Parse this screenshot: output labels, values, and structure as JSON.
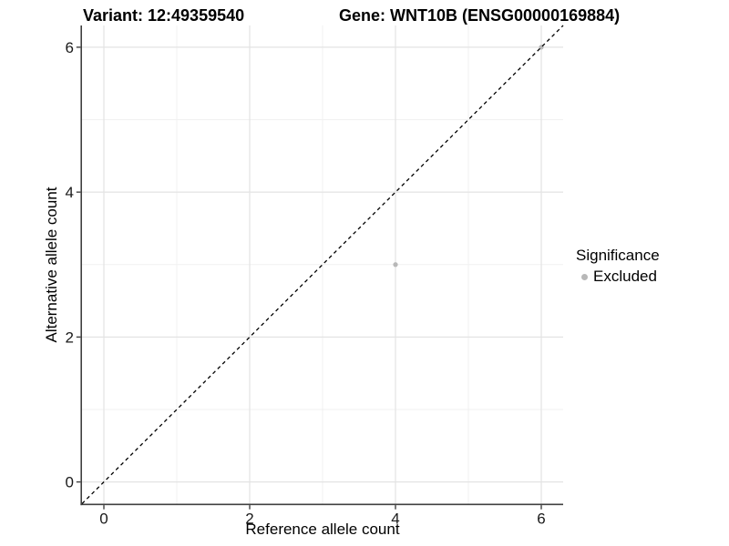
{
  "chart_data": {
    "type": "scatter",
    "title_left": "Variant: 12:49359540",
    "title_right": "Gene: WNT10B (ENSG00000169884)",
    "xlabel": "Reference allele count",
    "ylabel": "Alternative allele count",
    "xlim": [
      -0.3,
      6.3
    ],
    "ylim": [
      -0.3,
      6.3
    ],
    "xticks": [
      0,
      2,
      4,
      6
    ],
    "yticks": [
      0,
      2,
      4,
      6
    ],
    "xminor": [
      1,
      3,
      5
    ],
    "yminor": [
      1,
      3,
      5
    ],
    "grid": "on",
    "identity_line": {
      "style": "dashed",
      "color": "#000000",
      "from": [
        -0.3,
        -0.3
      ],
      "to": [
        6.3,
        6.3
      ]
    },
    "series": [
      {
        "name": "Excluded",
        "color": "#b8b8b8",
        "point_radius": 2.6,
        "points": [
          [
            4,
            3
          ],
          [
            6,
            6
          ]
        ]
      }
    ],
    "legend": {
      "title": "Significance",
      "position": "right",
      "entries": [
        {
          "label": "Excluded",
          "color": "#b8b8b8"
        }
      ]
    },
    "colors": {
      "background": "#ffffff",
      "axis": "#404040",
      "grid_major": "#e3e3e3",
      "grid_minor": "#f1f1f1",
      "tick_label": "#1a1a1a"
    }
  }
}
